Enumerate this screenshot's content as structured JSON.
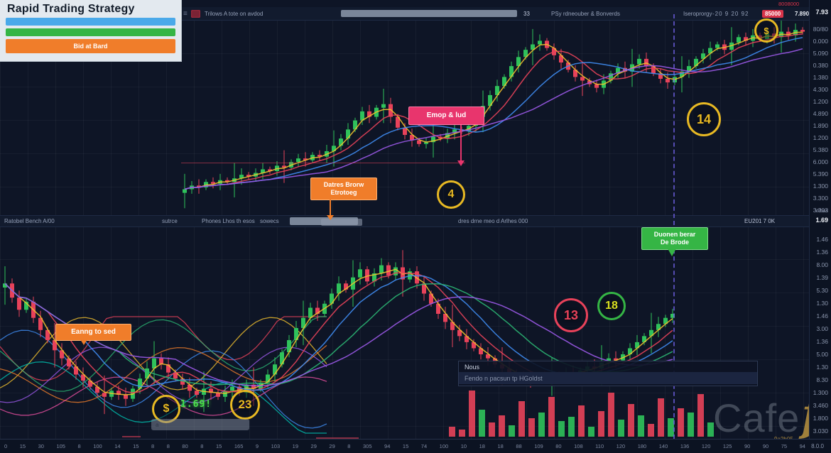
{
  "strategy_card": {
    "title": "Rapid Trading Strategy",
    "bars": [
      {
        "color": "#4aa9e9",
        "label": ""
      },
      {
        "color": "#35b545",
        "label": ""
      },
      {
        "color": "#f07d2a",
        "label": "Bid at Bard"
      }
    ]
  },
  "toolbar_top": {
    "menu_icon": "hamburger-icon",
    "symbol_text": "Trilows A tote on avdod",
    "value": "33",
    "right_text": "PSy rdneouber & Bonverds",
    "right_text2": "Iseroprorgy",
    "stats": "-20  9  20  92",
    "badge": "85000",
    "badge_color": "#d8344a",
    "price": "7.890",
    "corner_red": "8008000"
  },
  "toolbar_mid": {
    "left_text": "Ratobel Bench A/00",
    "center_label": "sutrce",
    "center_text": "Phones Lhos th esos",
    "center_text2": "sowecs",
    "right_text": "dres drne meo d Arlhes 000",
    "far_right": "EU201  7 0K"
  },
  "axis_right": {
    "top_price": "7.93",
    "labels_top": [
      "80/80",
      "0.000",
      "5.090",
      "0.380",
      "1.380",
      "4.300",
      "1.200",
      "4.890",
      "1.890",
      "1.200",
      "5.380",
      "6.000",
      "5.390",
      "1.300",
      "3.300",
      "3.303"
    ],
    "mid_label": "Wous",
    "mid_price": "1.69",
    "labels_bottom": [
      "1.46",
      "1.36",
      "8.00",
      "1.39",
      "5.30",
      "1.30",
      "1.46",
      "3.00",
      "1.36",
      "5.00",
      "1.30",
      "8.30",
      "1.300",
      "3.460",
      "1.800",
      "3.030"
    ]
  },
  "axis_bottom": {
    "ticks": [
      "0",
      "15",
      "30",
      "105",
      "8",
      "100",
      "14",
      "15",
      "8",
      "8",
      "80",
      "8",
      "15",
      "165",
      "9",
      "103",
      "19",
      "29",
      "29",
      "8",
      "305",
      "94",
      "15",
      "74",
      "100",
      "10",
      "18",
      "18",
      "88",
      "109",
      "80",
      "108",
      "110",
      "120",
      "180",
      "140",
      "136",
      "120",
      "125",
      "90",
      "90",
      "75",
      "94"
    ],
    "corner": "8.0.0"
  },
  "annotations": {
    "label_pink": "Emop & lud",
    "label_orange_line1": "Datres Brorw",
    "label_orange_line2": "Etrotoeg",
    "label_orange2": "Eanng to sed",
    "label_green_line1": "Duonen berar",
    "label_green_line2": "De Brode",
    "circle_4": "4",
    "circle_13": "13",
    "circle_18": "18",
    "circle_14": "14",
    "circle_23": "23",
    "dollar_big": "$",
    "dollar_top": "$",
    "price_flag": "1.69!",
    "input_hint": "a"
  },
  "news_panel": {
    "title": "Nous",
    "row": "Fendo n pacsun tp HGoldst"
  },
  "watermark": {
    "text_gray": "Cafe",
    "text_gold": "fx",
    "sub": "9a2b05"
  },
  "chart_data": {
    "type": "candlestick",
    "up_color": "#2fc25b",
    "down_color": "#e8425a",
    "panels": [
      {
        "name": "top",
        "closes": [
          10,
          12,
          11,
          14,
          13,
          15,
          14,
          16,
          18,
          17,
          19,
          21,
          20,
          23,
          22,
          25,
          27,
          26,
          29,
          28,
          31,
          34,
          38,
          43,
          48,
          53,
          50,
          55,
          57,
          50,
          44,
          40,
          37,
          35,
          36,
          39,
          38,
          41,
          43,
          42,
          45,
          50,
          56,
          62,
          67,
          72,
          78,
          83,
          87,
          90,
          92,
          88,
          84,
          80,
          76,
          72,
          70,
          68,
          66,
          70,
          74,
          77,
          75,
          79,
          82,
          78,
          74,
          71,
          69,
          72,
          75,
          78,
          82,
          85,
          88,
          90,
          87,
          91,
          94,
          92,
          95,
          93,
          96,
          94,
          97,
          95,
          98,
          97
        ],
        "ma": [
          {
            "window": 3,
            "color": "#f2c12e"
          },
          {
            "window": 7,
            "color": "#e8425a"
          },
          {
            "window": 13,
            "color": "#3f8cf2"
          },
          {
            "window": 21,
            "color": "#9b59e8"
          }
        ]
      },
      {
        "name": "bottom",
        "closes": [
          75,
          68,
          62,
          66,
          58,
          52,
          47,
          42,
          38,
          34,
          30,
          27,
          24,
          21,
          19,
          22,
          20,
          18,
          23,
          28,
          33,
          38,
          35,
          31,
          28,
          25,
          22,
          20,
          23,
          21,
          19,
          22,
          24,
          21,
          25,
          23,
          26,
          30,
          35,
          41,
          47,
          53,
          58,
          63,
          60,
          65,
          70,
          75,
          72,
          78,
          82,
          76,
          80,
          84,
          79,
          83,
          77,
          81,
          75,
          70,
          65,
          60,
          56,
          52,
          49,
          46,
          43,
          40,
          38,
          35,
          33,
          31,
          29,
          28,
          27,
          29,
          28,
          30,
          29,
          31,
          30,
          32,
          34,
          33,
          36,
          38,
          37,
          40,
          43,
          46,
          49,
          52,
          55,
          58,
          60
        ],
        "ma": [
          {
            "window": 3,
            "color": "#f2c12e"
          },
          {
            "window": 7,
            "color": "#e8425a"
          },
          {
            "window": 11,
            "color": "#3f8cf2"
          },
          {
            "window": 17,
            "color": "#2bb573"
          },
          {
            "window": 25,
            "color": "#9b59e8"
          }
        ]
      }
    ],
    "volume": {
      "heights": [
        14,
        10,
        65,
        38,
        20,
        30,
        16,
        50,
        26,
        34,
        56,
        22,
        28,
        44,
        14,
        36,
        62,
        24,
        46,
        30,
        18,
        54,
        26,
        40,
        34,
        60,
        20
      ],
      "colors": [
        "r",
        "r",
        "r",
        "g",
        "r",
        "r",
        "g",
        "r",
        "r",
        "g",
        "r",
        "g",
        "g",
        "r",
        "g",
        "r",
        "r",
        "g",
        "r",
        "g",
        "r",
        "r",
        "g",
        "r",
        "g",
        "r",
        "g"
      ]
    },
    "spaghetti_colors": [
      "#e8425a",
      "#f2c12e",
      "#3f8cf2",
      "#2bb573",
      "#9b59e8",
      "#00c2b2",
      "#f07d2a",
      "#e84fa0"
    ]
  }
}
